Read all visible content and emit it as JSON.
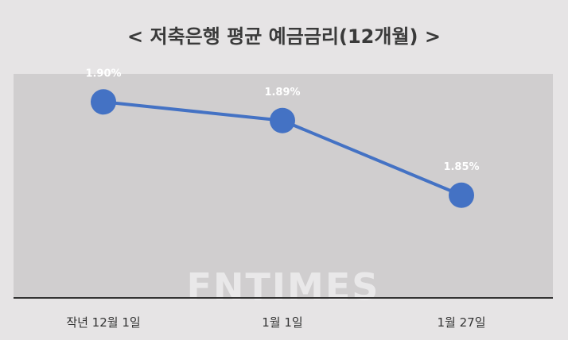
{
  "chart_data": {
    "type": "line",
    "title": "< 저축은행 평균 예금금리(12개월) >",
    "categories": [
      "작년 12월 1일",
      "1월 1일",
      "1월 27일"
    ],
    "series": [
      {
        "values": [
          1.9,
          1.89,
          1.85
        ]
      }
    ],
    "data_labels": [
      "1.90%",
      "1.89%",
      "1.85%"
    ],
    "ylim": [
      1.795,
      1.915
    ],
    "grid": false,
    "legend": "none",
    "line_color": "#4472c4",
    "plot_background": "#d0cecf",
    "axis_color": "#333333"
  },
  "watermark": "FNTIMES"
}
